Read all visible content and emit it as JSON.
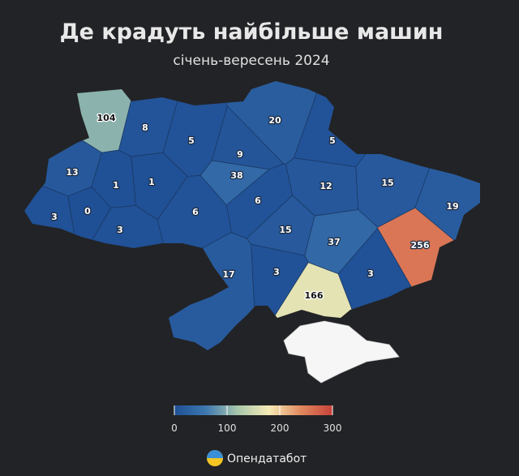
{
  "chart_data": {
    "type": "choropleth",
    "title": "Де крадуть найбільше машин",
    "subtitle": "січень-вересень 2024",
    "values": [
      104,
      8,
      5,
      20,
      5,
      9,
      38,
      13,
      1,
      1,
      12,
      15,
      6,
      19,
      3,
      0,
      6,
      3,
      15,
      37,
      256,
      17,
      3,
      3,
      166
    ],
    "colorscale": [
      "#1f4f95",
      "#3d78b0",
      "#a8c7ac",
      "#f6ebb5",
      "#e0895f",
      "#c8423a"
    ],
    "clim": [
      0,
      300
    ],
    "cticks": [
      0,
      100,
      200,
      300
    ]
  },
  "brand": "Опендатабот"
}
